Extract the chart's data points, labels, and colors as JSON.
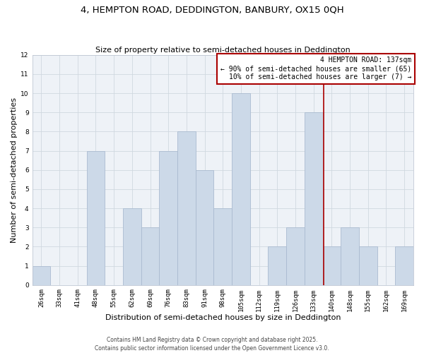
{
  "title": "4, HEMPTON ROAD, DEDDINGTON, BANBURY, OX15 0QH",
  "subtitle": "Size of property relative to semi-detached houses in Deddington",
  "xlabel": "Distribution of semi-detached houses by size in Deddington",
  "ylabel": "Number of semi-detached properties",
  "bin_labels": [
    "26sqm",
    "33sqm",
    "41sqm",
    "48sqm",
    "55sqm",
    "62sqm",
    "69sqm",
    "76sqm",
    "83sqm",
    "91sqm",
    "98sqm",
    "105sqm",
    "112sqm",
    "119sqm",
    "126sqm",
    "133sqm",
    "140sqm",
    "148sqm",
    "155sqm",
    "162sqm",
    "169sqm"
  ],
  "bar_heights": [
    1,
    0,
    0,
    7,
    0,
    4,
    3,
    7,
    8,
    6,
    4,
    10,
    0,
    2,
    3,
    9,
    2,
    3,
    2,
    0,
    2
  ],
  "bar_color": "#ccd9e8",
  "bar_edge_color": "#aabbd0",
  "grid_color": "#d0d8e0",
  "background_color": "#ffffff",
  "plot_bg_color": "#eef2f7",
  "ylim": [
    0,
    12
  ],
  "yticks": [
    0,
    1,
    2,
    3,
    4,
    5,
    6,
    7,
    8,
    9,
    10,
    11,
    12
  ],
  "vline_x": 15.57,
  "vline_color": "#aa0000",
  "annotation_title": "4 HEMPTON ROAD: 137sqm",
  "annotation_line1": "← 90% of semi-detached houses are smaller (65)",
  "annotation_line2": "10% of semi-detached houses are larger (7) →",
  "annotation_box_color": "#ffffff",
  "annotation_border_color": "#aa0000",
  "footer1": "Contains HM Land Registry data © Crown copyright and database right 2025.",
  "footer2": "Contains public sector information licensed under the Open Government Licence v3.0.",
  "title_fontsize": 9.5,
  "subtitle_fontsize": 8.0,
  "label_fontsize": 8.0,
  "tick_fontsize": 6.5,
  "annotation_fontsize": 7.0,
  "footer_fontsize": 5.5
}
